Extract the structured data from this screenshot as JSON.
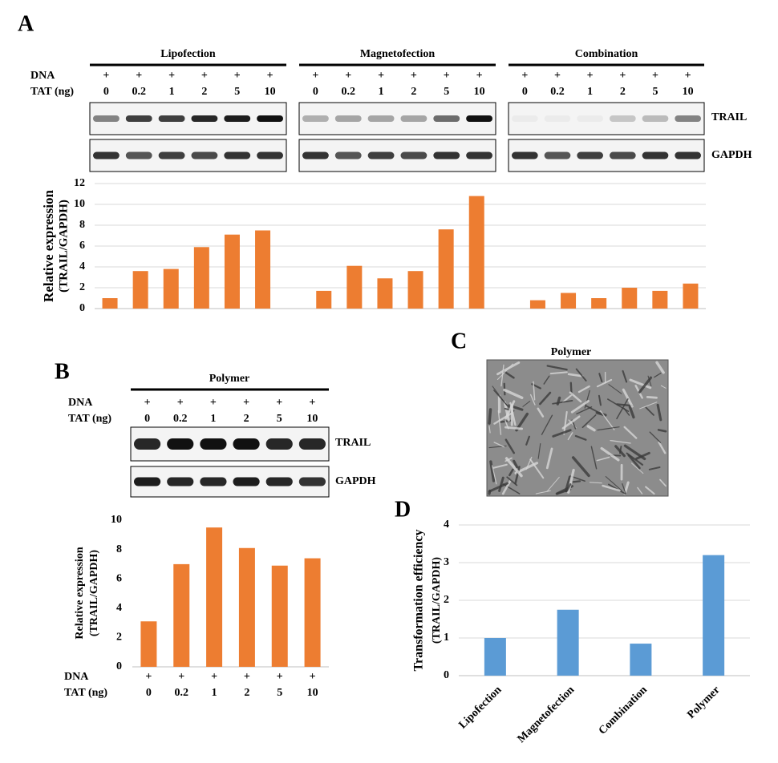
{
  "panels": {
    "a": "A",
    "b": "B",
    "c": "C",
    "d": "D"
  },
  "rows": {
    "dna": "DNA",
    "tat": "TAT (ng)",
    "plus": "+"
  },
  "bands": {
    "trail": "TRAIL",
    "gapdh": "GAPDH"
  },
  "image_c": {
    "title": "Polymer"
  },
  "chart_data": [
    {
      "type": "bar",
      "categories": [
        "0",
        "0.2",
        "1",
        "2",
        "5",
        "10"
      ],
      "series": [
        {
          "name": "Lipofection",
          "color": "#ed7d31",
          "values": [
            1.0,
            3.6,
            3.8,
            5.9,
            7.1,
            7.5
          ]
        },
        {
          "name": "Magnetofection",
          "color": "#ed7d31",
          "values": [
            1.7,
            4.1,
            2.9,
            3.6,
            7.6,
            10.8
          ]
        },
        {
          "name": "Combination",
          "color": "#ed7d31",
          "values": [
            0.8,
            1.5,
            1.0,
            2.0,
            1.7,
            2.4
          ]
        }
      ],
      "y_label": [
        "Relative expression",
        "(TRAIL/GAPDH)"
      ],
      "ylim": [
        0,
        12
      ],
      "yticks": [
        0,
        2,
        4,
        6,
        8,
        10,
        12
      ],
      "grid": true
    },
    {
      "type": "bar",
      "title": "Polymer",
      "categories": [
        "0",
        "0.2",
        "1",
        "2",
        "5",
        "10"
      ],
      "values": [
        3.1,
        7.0,
        9.5,
        8.1,
        6.9,
        7.4
      ],
      "color": "#ed7d31",
      "y_label": [
        "Relative expression",
        "(TRAIL/GAPDH)"
      ],
      "ylim": [
        0,
        10
      ],
      "yticks": [
        0,
        2,
        4,
        6,
        8,
        10
      ],
      "grid": false
    },
    {
      "type": "bar",
      "categories": [
        "Lipofection",
        "Magnetofection",
        "Combination",
        "Polymer"
      ],
      "values": [
        1.0,
        1.75,
        0.85,
        3.2
      ],
      "color": "#5b9bd5",
      "y_label": [
        "Transformation efficiency",
        "(TRAIL/GAPDH)"
      ],
      "ylim": [
        0,
        4
      ],
      "yticks": [
        0,
        1,
        2,
        3,
        4
      ],
      "grid": true
    }
  ]
}
